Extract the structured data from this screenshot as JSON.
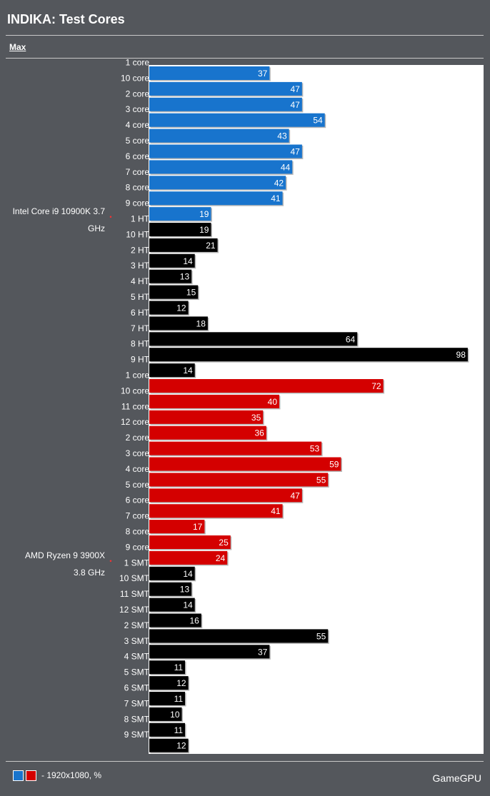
{
  "header": {
    "title": "INDIKA: Test Cores"
  },
  "tabs": [
    {
      "label": "Max"
    }
  ],
  "legend": {
    "text": "- 1920x1080, %",
    "colors": [
      "#1874cd",
      "#d40000"
    ]
  },
  "brand": {
    "text": "GameGPU"
  },
  "colors": {
    "intel": "#1874cd",
    "amd": "#d40000",
    "thread": "#000000",
    "page_bg": "#54575c",
    "plot_bg": "#ffffff"
  },
  "chart_data": {
    "type": "bar",
    "orientation": "horizontal",
    "xlim": [
      0,
      100
    ],
    "grid": false,
    "groups": [
      {
        "name": "Intel Core i9 10900K 3.7 GHz",
        "name_lines": [
          "Intel Core i9 10900K 3.7",
          "GHz"
        ],
        "bars": [
          {
            "label": "1 core",
            "value": 37,
            "color": "#1874cd"
          },
          {
            "label": "10 core",
            "value": 47,
            "color": "#1874cd"
          },
          {
            "label": "2 core",
            "value": 47,
            "color": "#1874cd"
          },
          {
            "label": "3 core",
            "value": 54,
            "color": "#1874cd"
          },
          {
            "label": "4 core",
            "value": 43,
            "color": "#1874cd"
          },
          {
            "label": "5 core",
            "value": 47,
            "color": "#1874cd"
          },
          {
            "label": "6 core",
            "value": 44,
            "color": "#1874cd"
          },
          {
            "label": "7 core",
            "value": 42,
            "color": "#1874cd"
          },
          {
            "label": "8 core",
            "value": 41,
            "color": "#1874cd"
          },
          {
            "label": "9 core",
            "value": 19,
            "color": "#1874cd"
          },
          {
            "label": "1 HT",
            "value": 19,
            "color": "#000000"
          },
          {
            "label": "10 HT",
            "value": 21,
            "color": "#000000"
          },
          {
            "label": "2 HT",
            "value": 14,
            "color": "#000000"
          },
          {
            "label": "3 HT",
            "value": 13,
            "color": "#000000"
          },
          {
            "label": "4 HT",
            "value": 15,
            "color": "#000000"
          },
          {
            "label": "5 HT",
            "value": 12,
            "color": "#000000"
          },
          {
            "label": "6 HT",
            "value": 18,
            "color": "#000000"
          },
          {
            "label": "7 HT",
            "value": 64,
            "color": "#000000"
          },
          {
            "label": "8 HT",
            "value": 98,
            "color": "#000000"
          },
          {
            "label": "9 HT",
            "value": 14,
            "color": "#000000"
          }
        ]
      },
      {
        "name": "AMD Ryzen 9 3900X 3.8 GHz",
        "name_lines": [
          "AMD Ryzen 9 3900X",
          "3.8 GHz"
        ],
        "bars": [
          {
            "label": "1 core",
            "value": 72,
            "color": "#d40000"
          },
          {
            "label": "10 core",
            "value": 40,
            "color": "#d40000"
          },
          {
            "label": "11 core",
            "value": 35,
            "color": "#d40000"
          },
          {
            "label": "12 core",
            "value": 36,
            "color": "#d40000"
          },
          {
            "label": "2 core",
            "value": 53,
            "color": "#d40000"
          },
          {
            "label": "3 core",
            "value": 59,
            "color": "#d40000"
          },
          {
            "label": "4 core",
            "value": 55,
            "color": "#d40000"
          },
          {
            "label": "5 core",
            "value": 47,
            "color": "#d40000"
          },
          {
            "label": "6 core",
            "value": 41,
            "color": "#d40000"
          },
          {
            "label": "7 core",
            "value": 17,
            "color": "#d40000"
          },
          {
            "label": "8 core",
            "value": 25,
            "color": "#d40000"
          },
          {
            "label": "9 core",
            "value": 24,
            "color": "#d40000"
          },
          {
            "label": "1 SMT",
            "value": 14,
            "color": "#000000"
          },
          {
            "label": "10 SMT",
            "value": 13,
            "color": "#000000"
          },
          {
            "label": "11 SMT",
            "value": 14,
            "color": "#000000"
          },
          {
            "label": "12 SMT",
            "value": 16,
            "color": "#000000"
          },
          {
            "label": "2 SMT",
            "value": 55,
            "color": "#000000"
          },
          {
            "label": "3 SMT",
            "value": 37,
            "color": "#000000"
          },
          {
            "label": "4 SMT",
            "value": 11,
            "color": "#000000"
          },
          {
            "label": "5 SMT",
            "value": 12,
            "color": "#000000"
          },
          {
            "label": "6 SMT",
            "value": 11,
            "color": "#000000"
          },
          {
            "label": "7 SMT",
            "value": 10,
            "color": "#000000"
          },
          {
            "label": "8 SMT",
            "value": 11,
            "color": "#000000"
          },
          {
            "label": "9 SMT",
            "value": 12,
            "color": "#000000"
          }
        ]
      }
    ]
  }
}
